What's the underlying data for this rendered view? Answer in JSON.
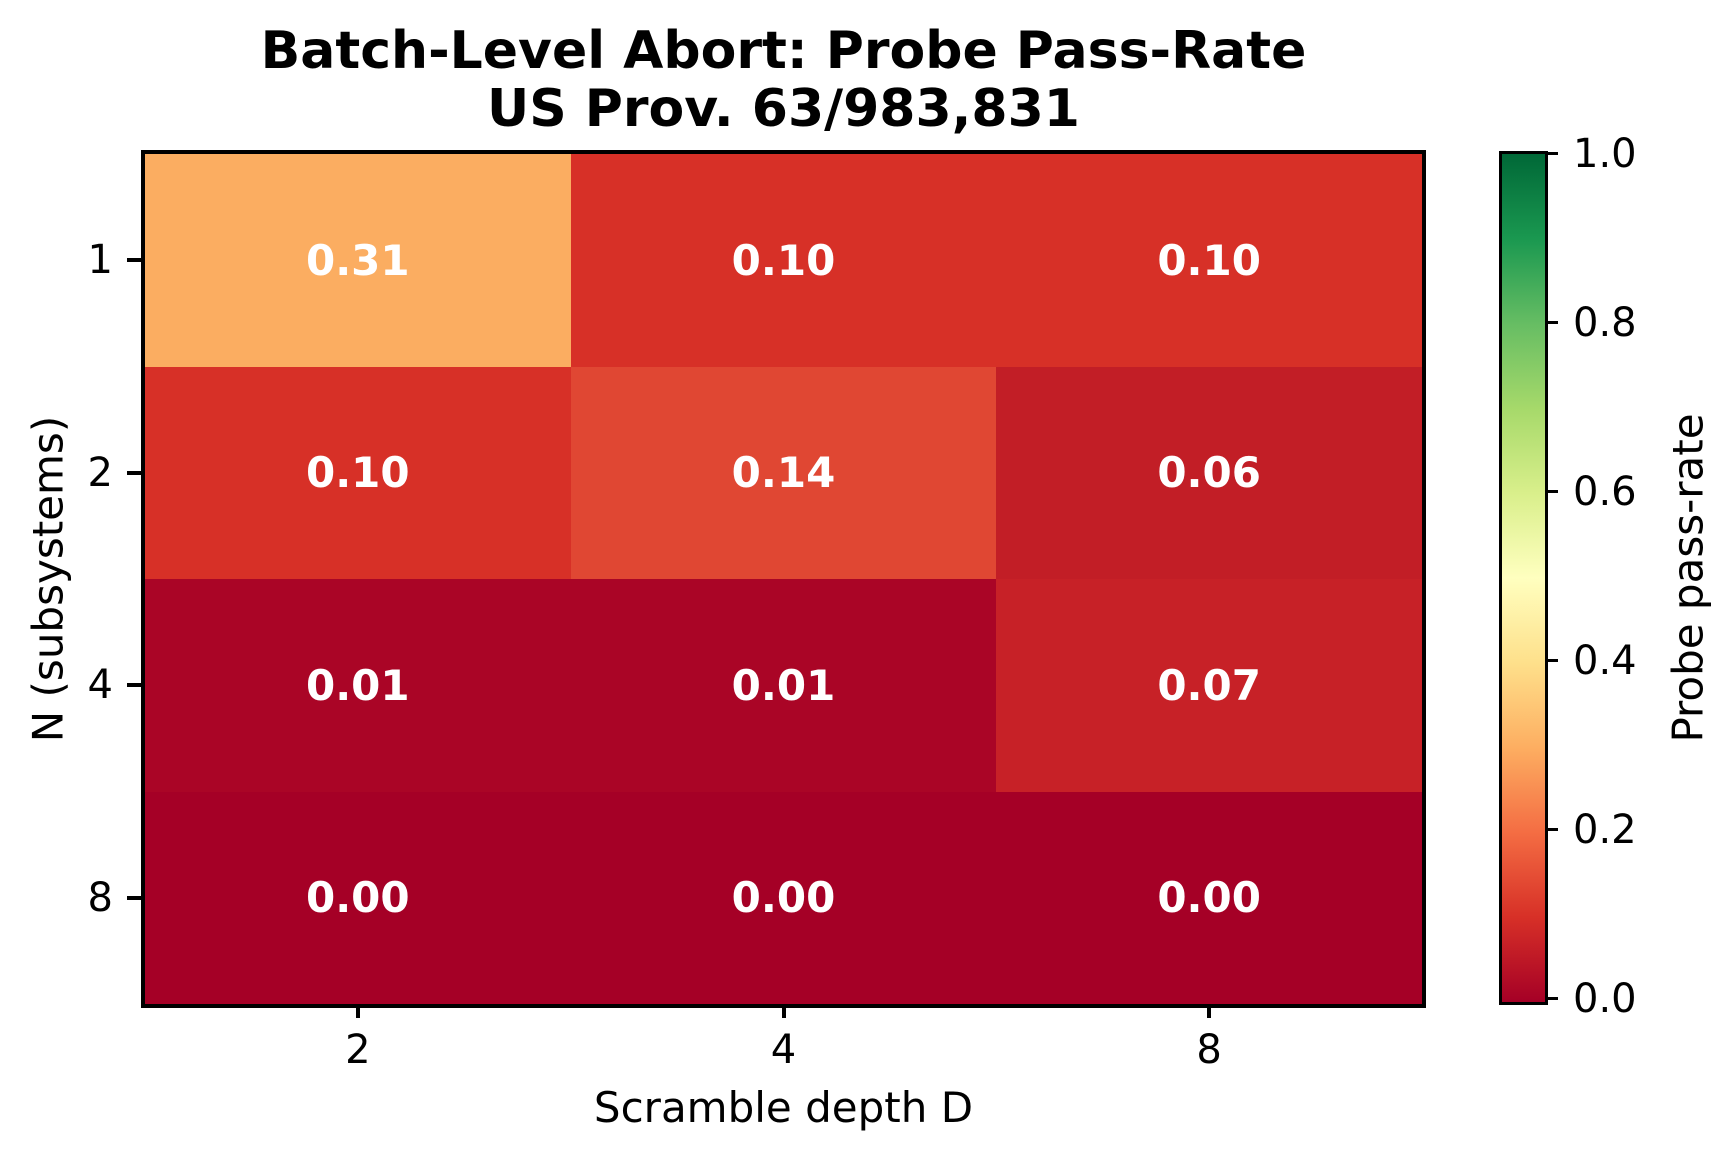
{
  "figure": {
    "title_line1": "Batch-Level Abort: Probe Pass-Rate",
    "title_line2": "US Prov. 63/983,831"
  },
  "chart_data": {
    "type": "heatmap",
    "title": "Batch-Level Abort: Probe Pass-Rate",
    "subtitle": "US Prov. 63/983,831",
    "xlabel": "Scramble depth D",
    "ylabel": "N (subsystems)",
    "x_categories": [
      "2",
      "4",
      "8"
    ],
    "y_categories": [
      "1",
      "2",
      "4",
      "8"
    ],
    "values": [
      [
        0.31,
        0.1,
        0.1
      ],
      [
        0.1,
        0.14,
        0.06
      ],
      [
        0.01,
        0.01,
        0.07
      ],
      [
        0.0,
        0.0,
        0.0
      ]
    ],
    "cell_labels": [
      [
        "0.31",
        "0.10",
        "0.10"
      ],
      [
        "0.10",
        "0.14",
        "0.06"
      ],
      [
        "0.01",
        "0.01",
        "0.07"
      ],
      [
        "0.00",
        "0.00",
        "0.00"
      ]
    ],
    "cell_colors": [
      [
        "#FBAD61",
        "#D73027",
        "#D73027"
      ],
      [
        "#D73027",
        "#E04733",
        "#C21E26"
      ],
      [
        "#AA0526",
        "#AA0526",
        "#C72127"
      ],
      [
        "#A50026",
        "#A50026",
        "#A50026"
      ]
    ],
    "value_range": [
      0,
      1
    ],
    "grid": false,
    "colormap": "RdYlGn",
    "colorbar": {
      "label": "Probe pass-rate",
      "position": "right",
      "tick_labels": [
        "1.0",
        "0.8",
        "0.6",
        "0.4",
        "0.2",
        "0.0"
      ],
      "tick_values": [
        1.0,
        0.8,
        0.6,
        0.4,
        0.2,
        0.0
      ],
      "gradient_stops": [
        {
          "pos": 0.0,
          "color": "#A50026"
        },
        {
          "pos": 0.1,
          "color": "#D73027"
        },
        {
          "pos": 0.2,
          "color": "#F46D43"
        },
        {
          "pos": 0.3,
          "color": "#FDAE61"
        },
        {
          "pos": 0.4,
          "color": "#FEE08B"
        },
        {
          "pos": 0.5,
          "color": "#FFFFBF"
        },
        {
          "pos": 0.6,
          "color": "#D9EF8B"
        },
        {
          "pos": 0.7,
          "color": "#A6D96A"
        },
        {
          "pos": 0.8,
          "color": "#66BD63"
        },
        {
          "pos": 0.9,
          "color": "#1A9850"
        },
        {
          "pos": 1.0,
          "color": "#006837"
        }
      ]
    }
  }
}
